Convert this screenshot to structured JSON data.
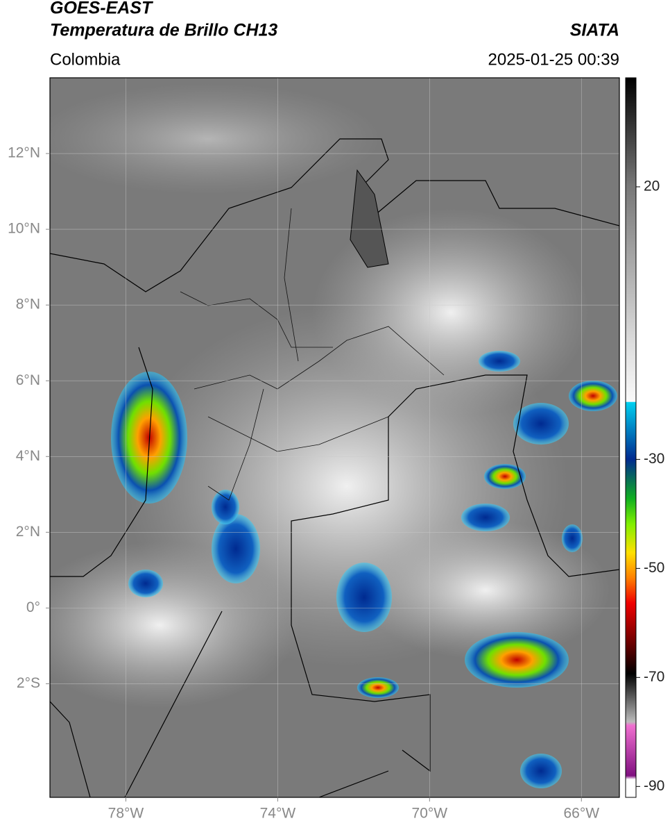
{
  "header": {
    "title": "GOES-EAST",
    "subtitle": "Temperatura de Brillo CH13",
    "region": "Colombia",
    "source": "SIATA",
    "datetime": "2025-01-25 00:39"
  },
  "map": {
    "xlim": [
      -80,
      -65
    ],
    "ylim": [
      -5,
      14
    ],
    "grid": true,
    "xticks": [
      {
        "value": -78,
        "label": "78°W"
      },
      {
        "value": -74,
        "label": "74°W"
      },
      {
        "value": -70,
        "label": "70°W"
      },
      {
        "value": -66,
        "label": "66°W"
      }
    ],
    "yticks": [
      {
        "value": 12,
        "label": "12°N"
      },
      {
        "value": 10,
        "label": "10°N"
      },
      {
        "value": 8,
        "label": "8°N"
      },
      {
        "value": 6,
        "label": "6°N"
      },
      {
        "value": 4,
        "label": "4°N"
      },
      {
        "value": 2,
        "label": "2°N"
      },
      {
        "value": 0,
        "label": "0°"
      },
      {
        "value": -2,
        "label": "2°S"
      }
    ]
  },
  "colorbar": {
    "range": [
      -92,
      40
    ],
    "ticks": [
      20,
      -30,
      -50,
      -70,
      -90
    ]
  }
}
